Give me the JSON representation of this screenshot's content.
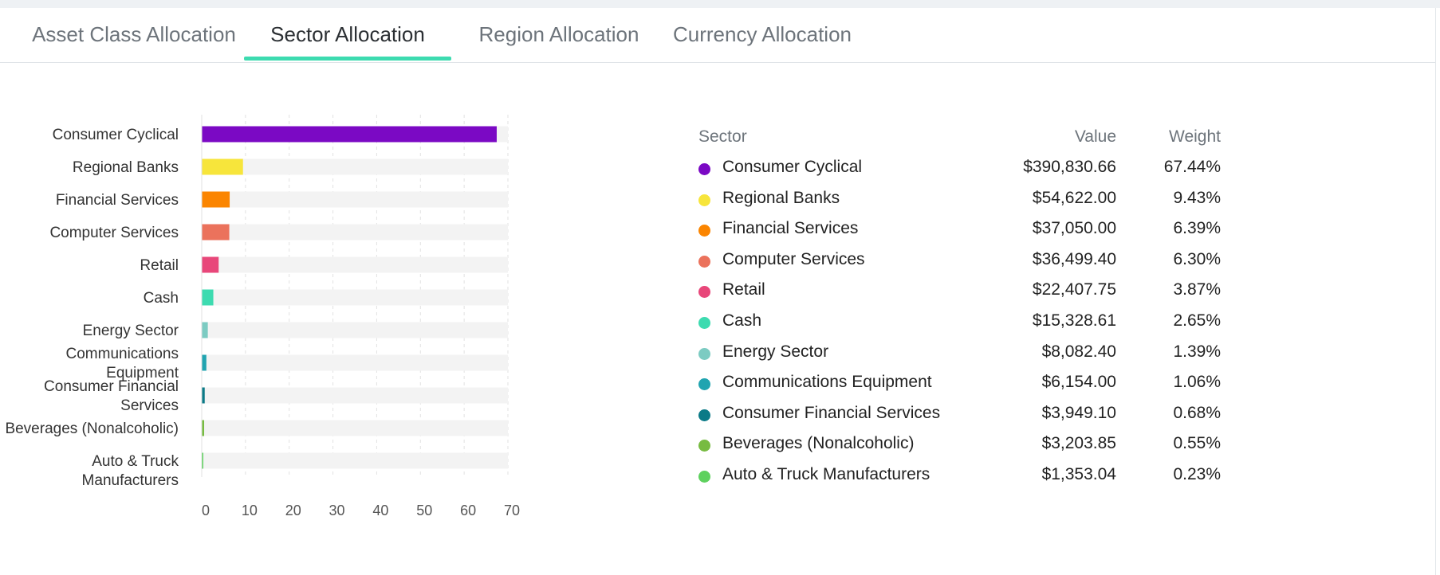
{
  "tabs": [
    {
      "label": "Asset Class Allocation",
      "active": false
    },
    {
      "label": "Sector Allocation",
      "active": true
    },
    {
      "label": "Region Allocation",
      "active": false
    },
    {
      "label": "Currency Allocation",
      "active": false
    }
  ],
  "legend": {
    "headers": {
      "sector": "Sector",
      "value": "Value",
      "weight": "Weight"
    }
  },
  "chart_data": {
    "type": "bar",
    "orientation": "horizontal",
    "title": "",
    "xlabel": "",
    "ylabel": "",
    "xlim": [
      0,
      70
    ],
    "xticks": [
      0,
      10,
      20,
      30,
      40,
      50,
      60,
      70
    ],
    "grid": true,
    "categories": [
      "Consumer Cyclical",
      "Regional Banks",
      "Financial Services",
      "Computer Services",
      "Retail",
      "Cash",
      "Energy Sector",
      "Communications Equipment",
      "Consumer Financial Services",
      "Beverages (Nonalcoholic)",
      "Auto & Truck Manufacturers"
    ],
    "category_labels": [
      [
        "Consumer Cyclical"
      ],
      [
        "Regional Banks"
      ],
      [
        "Financial Services"
      ],
      [
        "Computer Services"
      ],
      [
        "Retail"
      ],
      [
        "Cash"
      ],
      [
        "Energy Sector"
      ],
      [
        "Communications",
        "Equipment"
      ],
      [
        "Consumer Financial",
        "Services"
      ],
      [
        "Beverages (Nonalcoholic)"
      ],
      [
        "Auto & Truck Manufacturers"
      ]
    ],
    "values": [
      67.44,
      9.43,
      6.39,
      6.3,
      3.87,
      2.65,
      1.39,
      1.06,
      0.68,
      0.55,
      0.23
    ],
    "amounts": [
      "$390,830.66",
      "$54,622.00",
      "$37,050.00",
      "$36,499.40",
      "$22,407.75",
      "$15,328.61",
      "$8,082.40",
      "$6,154.00",
      "$3,949.10",
      "$3,203.85",
      "$1,353.04"
    ],
    "weights": [
      "67.44%",
      "9.43%",
      "6.39%",
      "6.30%",
      "3.87%",
      "2.65%",
      "1.39%",
      "1.06%",
      "0.68%",
      "0.55%",
      "0.23%"
    ],
    "colors": [
      "#7b09c4",
      "#f7e53b",
      "#fb8500",
      "#eb725c",
      "#e8477a",
      "#3ddbb0",
      "#7ccbc2",
      "#21a4b0",
      "#0b7a87",
      "#77bb41",
      "#5ed15e"
    ],
    "track_color": "#f3f3f3",
    "legend_placement": "right"
  }
}
